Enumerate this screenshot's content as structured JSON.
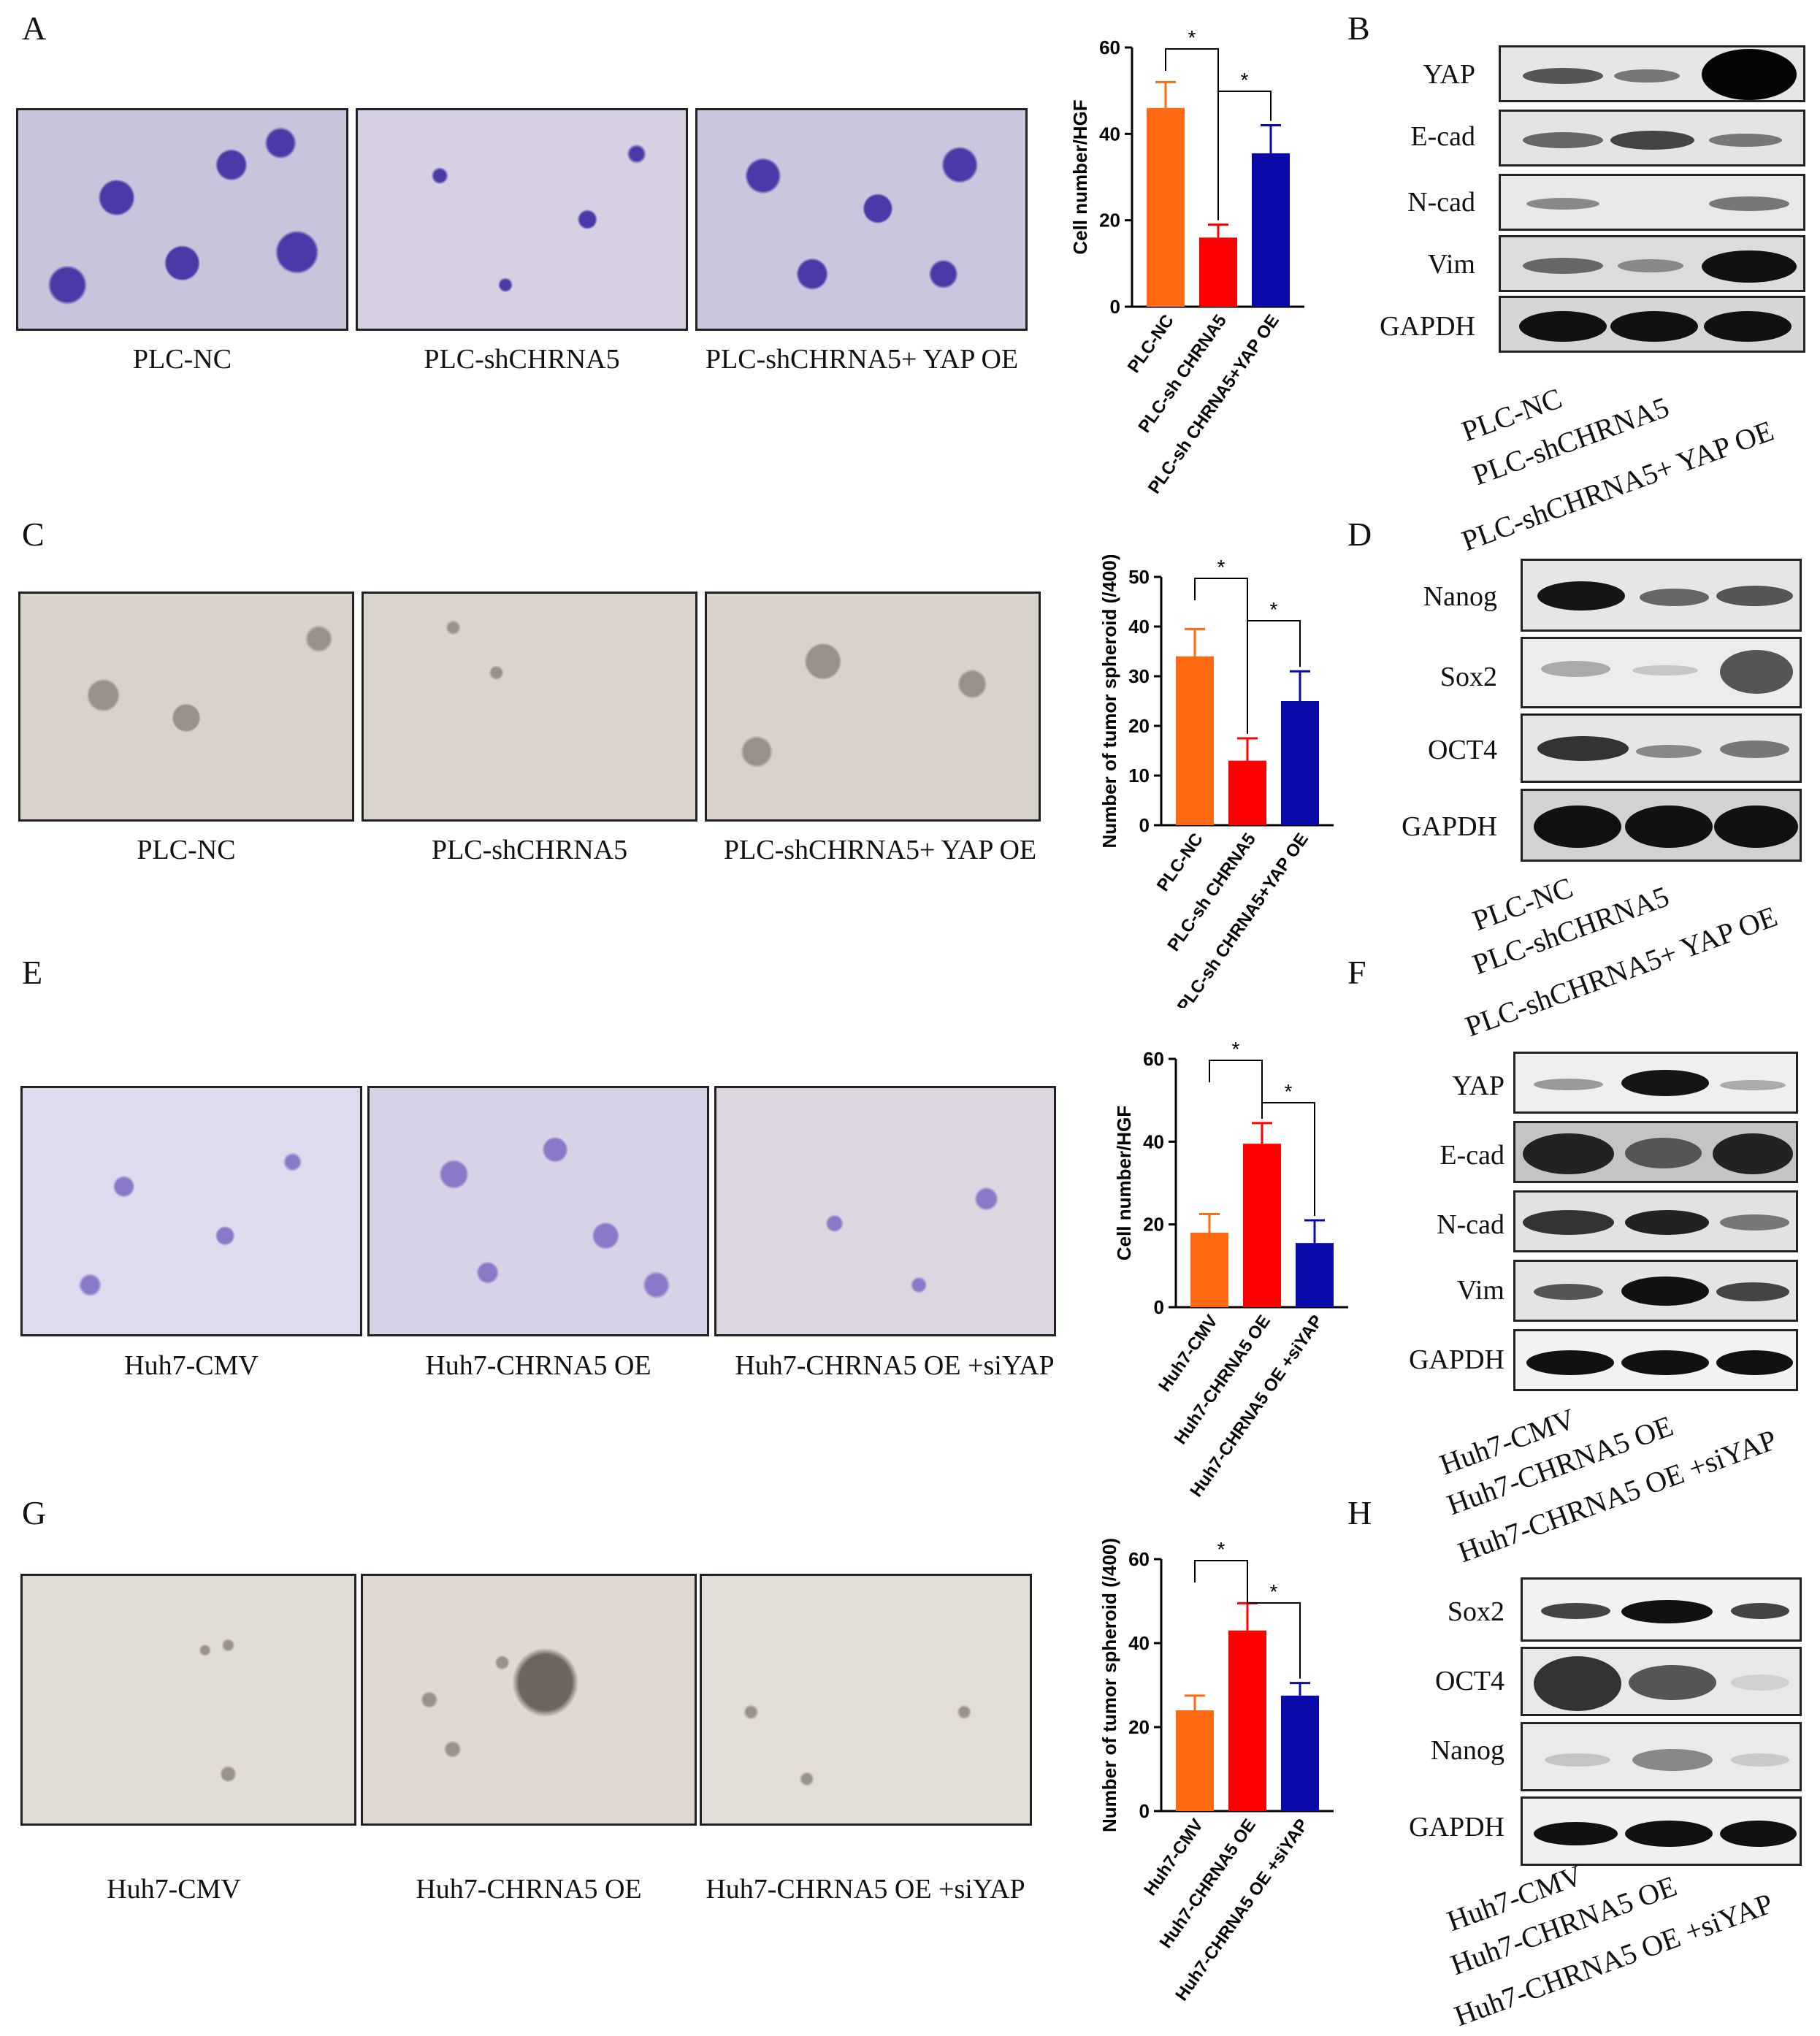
{
  "colors": {
    "c1": "#ff6a13",
    "c2": "#ff0000",
    "c3": "#0a0aa8"
  },
  "panels": {
    "A": {
      "label": "A",
      "captions": [
        "PLC-NC",
        "PLC-shCHRNA5",
        "PLC-shCHRNA5+ YAP OE"
      ]
    },
    "B": {
      "label": "B",
      "bands": [
        "YAP",
        "E-cad",
        "N-cad",
        "Vim",
        "GAPDH"
      ],
      "lanes": [
        "PLC-NC",
        "PLC-shCHRNA5",
        "PLC-shCHRNA5+ YAP OE"
      ]
    },
    "C": {
      "label": "C",
      "captions": [
        "PLC-NC",
        "PLC-shCHRNA5",
        "PLC-shCHRNA5+ YAP OE"
      ]
    },
    "D": {
      "label": "D",
      "bands": [
        "Nanog",
        "Sox2",
        "OCT4",
        "GAPDH"
      ],
      "lanes": [
        "PLC-NC",
        "PLC-shCHRNA5",
        "PLC-shCHRNA5+ YAP OE"
      ]
    },
    "E": {
      "label": "E",
      "captions": [
        "Huh7-CMV",
        "Huh7-CHRNA5 OE",
        "Huh7-CHRNA5 OE +siYAP"
      ]
    },
    "F": {
      "label": "F",
      "bands": [
        "YAP",
        "E-cad",
        "N-cad",
        "Vim",
        "GAPDH"
      ],
      "lanes": [
        "Huh7-CMV",
        "Huh7-CHRNA5 OE",
        "Huh7-CHRNA5 OE +siYAP"
      ]
    },
    "G": {
      "label": "G",
      "captions": [
        "Huh7-CMV",
        "Huh7-CHRNA5 OE",
        "Huh7-CHRNA5 OE +siYAP"
      ]
    },
    "H": {
      "label": "H",
      "bands": [
        "Sox2",
        "OCT4",
        "Nanog",
        "GAPDH"
      ],
      "lanes": [
        "Huh7-CMV",
        "Huh7-CHRNA5 OE",
        "Huh7-CHRNA5 OE +siYAP"
      ]
    }
  },
  "chart_data": [
    {
      "type": "bar",
      "ylabel": "Cell number/HGF",
      "ylim": [
        0,
        60
      ],
      "yticks": [
        "0",
        "20",
        "40",
        "60"
      ],
      "categories": [
        "PLC-NC",
        "PLC-sh CHRNA5",
        "PLC-sh CHRNA5+YAP OE"
      ],
      "values": [
        46,
        16,
        35.5
      ],
      "errors": [
        6,
        3,
        6.5
      ],
      "significance": [
        "*",
        "*"
      ]
    },
    {
      "type": "bar",
      "ylabel": "Number of tumor spheroid (/400)",
      "ylim": [
        0,
        50
      ],
      "yticks": [
        "0",
        "10",
        "20",
        "30",
        "40",
        "50"
      ],
      "categories": [
        "PLC-NC",
        "PLC-sh CHRNA5",
        "PLC-sh CHRNA5+YAP OE"
      ],
      "values": [
        34,
        13,
        25
      ],
      "errors": [
        5.5,
        4.5,
        6
      ],
      "significance": [
        "*",
        "*"
      ]
    },
    {
      "type": "bar",
      "ylabel": "Cell number/HGF",
      "ylim": [
        0,
        60
      ],
      "yticks": [
        "0",
        "20",
        "40",
        "60"
      ],
      "categories": [
        "Huh7-CMV",
        "Huh7-CHRNA5 OE",
        "Huh7-CHRNA5 OE +siYAP"
      ],
      "values": [
        18,
        39.5,
        15.5
      ],
      "errors": [
        4.5,
        5,
        5.5
      ],
      "significance": [
        "*",
        "*"
      ]
    },
    {
      "type": "bar",
      "ylabel": "Number of tumor spheroid (/400)",
      "ylim": [
        0,
        60
      ],
      "yticks": [
        "0",
        "20",
        "40",
        "60"
      ],
      "categories": [
        "Huh7-CMV",
        "Huh7-CHRNA5 OE",
        "Huh7-CHRNA5 OE +siYAP"
      ],
      "values": [
        24,
        43,
        27.5
      ],
      "errors": [
        3.5,
        6.5,
        3
      ],
      "significance": [
        "*",
        "*"
      ]
    }
  ]
}
